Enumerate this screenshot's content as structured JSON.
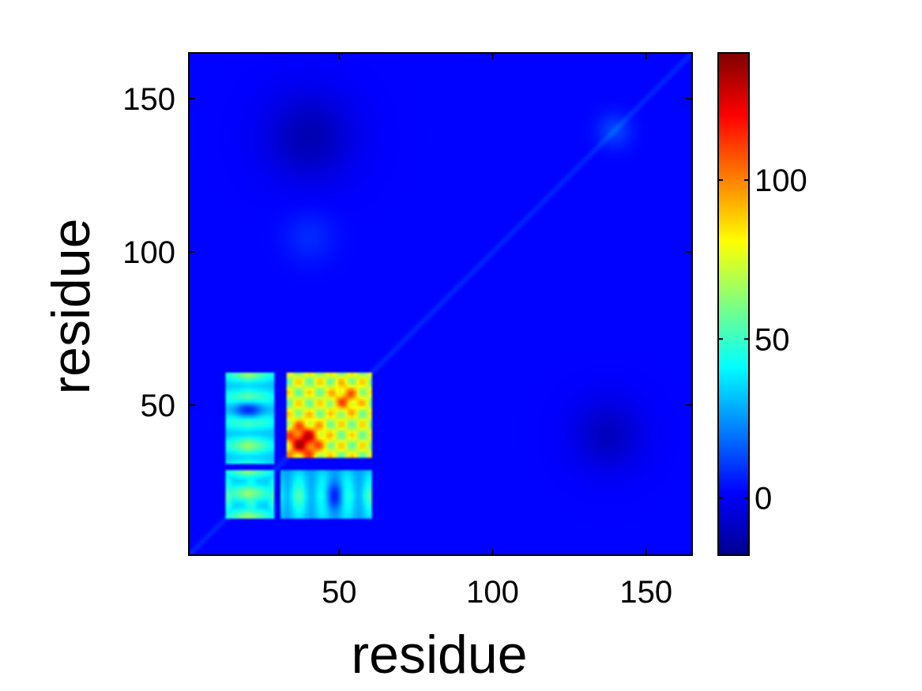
{
  "chart_data": {
    "type": "heatmap",
    "title": "",
    "xlabel": "residue",
    "ylabel": "residue",
    "xlim": [
      1,
      165
    ],
    "ylim": [
      1,
      165
    ],
    "x_ticks": [
      50,
      100,
      150
    ],
    "y_ticks": [
      50,
      100,
      150
    ],
    "colorbar": {
      "colormap": "jet",
      "range": [
        -18,
        140
      ],
      "ticks": [
        0,
        50,
        100
      ],
      "placement": "right"
    },
    "matrix_description_values": {
      "background": 2,
      "diagonal": 8,
      "hot_regions": [
        {
          "x_range": [
            33,
            60
          ],
          "y_range": [
            33,
            60
          ],
          "peak": 140,
          "peak_at": [
            38,
            38
          ]
        },
        {
          "x_range": [
            13,
            28
          ],
          "y_range": [
            13,
            60
          ],
          "peak": 75
        },
        {
          "x_range": [
            13,
            60
          ],
          "y_range": [
            13,
            28
          ],
          "peak": 70
        }
      ]
    }
  }
}
